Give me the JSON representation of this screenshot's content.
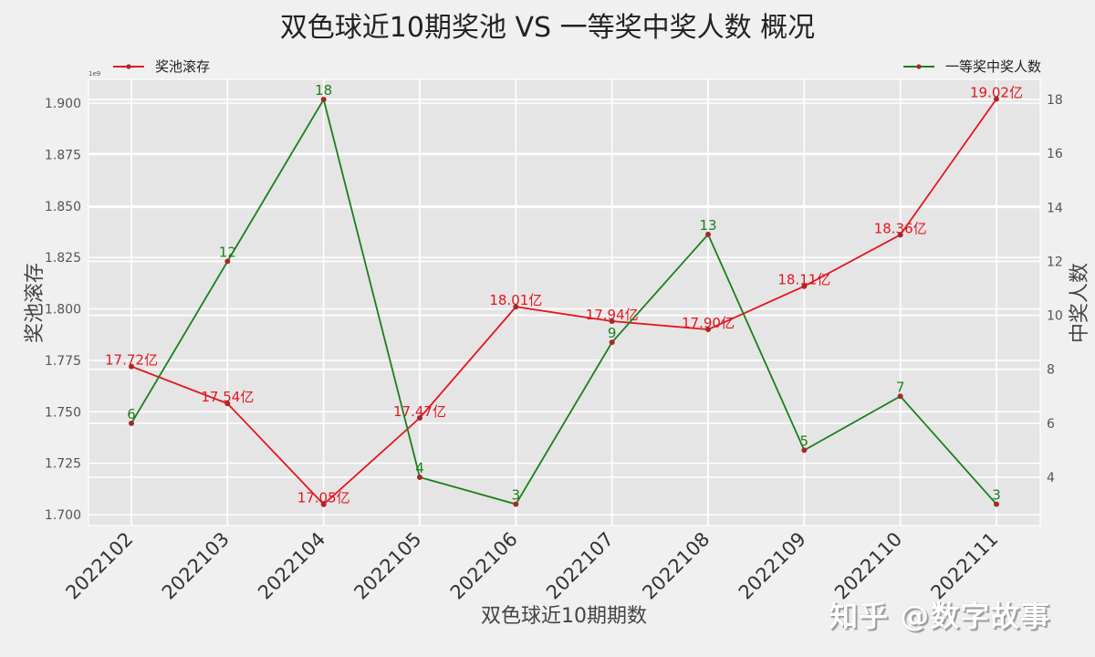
{
  "chart_data": {
    "type": "line",
    "title": "双色球近10期奖池 VS 一等奖中奖人数 概况",
    "xlabel": "双色球近10期期数",
    "categories": [
      "2022102",
      "2022103",
      "2022104",
      "2022105",
      "2022106",
      "2022107",
      "2022108",
      "2022109",
      "2022110",
      "2022111"
    ],
    "left_axis": {
      "label": "奖池滚存",
      "offset_text": "1e9",
      "ylim": [
        1.695,
        1.912
      ],
      "ticks": [
        "1.700",
        "1.725",
        "1.750",
        "1.775",
        "1.800",
        "1.825",
        "1.850",
        "1.875",
        "1.900"
      ],
      "tick_values": [
        1.7,
        1.725,
        1.75,
        1.775,
        1.8,
        1.825,
        1.85,
        1.875,
        1.9
      ]
    },
    "right_axis": {
      "label": "中奖人数",
      "ylim": [
        2.25,
        18.5
      ],
      "ticks": [
        "4",
        "6",
        "8",
        "10",
        "12",
        "14",
        "16",
        "18"
      ],
      "tick_values": [
        4,
        6,
        8,
        10,
        12,
        14,
        16,
        18
      ]
    },
    "series": [
      {
        "name": "奖池滚存",
        "axis": "left",
        "color": "#e3161f",
        "marker_color": "#a52a2a",
        "values": [
          1.772,
          1.754,
          1.705,
          1.747,
          1.801,
          1.794,
          1.79,
          1.811,
          1.836,
          1.902
        ],
        "labels": [
          "17.72亿",
          "17.54亿",
          "17.05亿",
          "17.47亿",
          "18.01亿",
          "17.94亿",
          "17.90亿",
          "18.11亿",
          "18.36亿",
          "19.02亿"
        ]
      },
      {
        "name": "一等奖中奖人数",
        "axis": "right",
        "color": "#1a7f1a",
        "marker_color": "#a52a2a",
        "values": [
          6,
          12,
          18,
          4,
          3,
          9,
          13,
          5,
          7,
          3
        ],
        "labels": [
          "6",
          "12",
          "18",
          "4",
          "3",
          "9",
          "13",
          "5",
          "7",
          "3"
        ]
      }
    ],
    "legend": [
      {
        "label": "奖池滚存",
        "position": "upper-left"
      },
      {
        "label": "一等奖中奖人数",
        "position": "upper-right"
      }
    ],
    "grid": true
  },
  "watermark": "知乎 @数字故事"
}
